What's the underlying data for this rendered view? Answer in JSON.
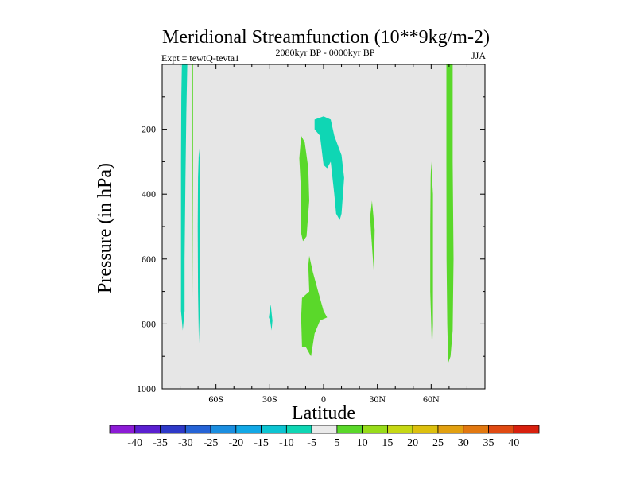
{
  "chart_data": {
    "type": "heatmap",
    "title": "Meridional Streamfunction (10**9kg/m-2)",
    "left_label": "Expt = tewtQ-tevta1",
    "center_label": "2080kyr BP - 0000kyr BP",
    "right_label": "JJA",
    "xlabel": "Latitude",
    "ylabel": "Pressure (in hPa)",
    "xlim": [
      -90,
      90
    ],
    "ylim": [
      1000,
      0
    ],
    "x_ticks": [
      {
        "value": -60,
        "label": "60S"
      },
      {
        "value": -30,
        "label": "30S"
      },
      {
        "value": 0,
        "label": "0"
      },
      {
        "value": 30,
        "label": "30N"
      },
      {
        "value": 60,
        "label": "60N"
      }
    ],
    "y_ticks": [
      {
        "value": 200,
        "label": "200"
      },
      {
        "value": 400,
        "label": "400"
      },
      {
        "value": 600,
        "label": "600"
      },
      {
        "value": 800,
        "label": "800"
      },
      {
        "value": 1000,
        "label": "1000"
      }
    ],
    "background_color": "#e6e6e6",
    "colorbar": {
      "levels": [
        "-40",
        "-35",
        "-30",
        "-25",
        "-20",
        "-15",
        "-10",
        "-5",
        "5",
        "10",
        "15",
        "20",
        "25",
        "30",
        "35",
        "40"
      ],
      "colors": [
        "#8c1bd6",
        "#5a1fd0",
        "#2e39c8",
        "#2563d6",
        "#1b8ee0",
        "#12a8e6",
        "#0dc4d2",
        "#0fd6b4",
        "#eaeaea",
        "#5ad82a",
        "#98dc1a",
        "#c6d814",
        "#ddc00e",
        "#e2a010",
        "#e27810",
        "#e04a12",
        "#d8200e"
      ]
    },
    "regions": [
      {
        "name": "sh-high-lat-neg-column",
        "value": -10,
        "color": "#0fd6b4",
        "outline": [
          [
            -79,
            0
          ],
          [
            -76,
            0
          ],
          [
            -76.5,
            150
          ],
          [
            -77,
            350
          ],
          [
            -77.5,
            600
          ],
          [
            -77.5,
            760
          ],
          [
            -78.5,
            820
          ],
          [
            -79.5,
            760
          ],
          [
            -79.5,
            600
          ],
          [
            -79.5,
            300
          ],
          [
            -79.3,
            100
          ]
        ]
      },
      {
        "name": "sh-thin-pos-strip",
        "value": 5,
        "color": "#5ad82a",
        "outline": [
          [
            -73.5,
            0
          ],
          [
            -72.8,
            0
          ],
          [
            -72.8,
            300
          ],
          [
            -73,
            600
          ],
          [
            -73.2,
            760
          ],
          [
            -73.5,
            600
          ],
          [
            -73.6,
            300
          ]
        ]
      },
      {
        "name": "sh-midlat-neg-strip",
        "value": -5,
        "color": "#0fd6b4",
        "outline": [
          [
            -69.5,
            260
          ],
          [
            -69,
            300
          ],
          [
            -68.8,
            500
          ],
          [
            -68.8,
            700
          ],
          [
            -69.5,
            860
          ],
          [
            -70,
            700
          ],
          [
            -70.2,
            500
          ],
          [
            -70,
            350
          ]
        ]
      },
      {
        "name": "sh-subtropics-small-neg",
        "value": -5,
        "color": "#0fd6b4",
        "outline": [
          [
            -29.5,
            740
          ],
          [
            -28.5,
            790
          ],
          [
            -29,
            820
          ],
          [
            -29.8,
            790
          ],
          [
            -30.5,
            780
          ]
        ]
      },
      {
        "name": "tropical-upper-pos",
        "value": 5,
        "color": "#5ad82a",
        "outline": [
          [
            -12.5,
            220
          ],
          [
            -10.5,
            240
          ],
          [
            -8.5,
            320
          ],
          [
            -8,
            420
          ],
          [
            -9.5,
            530
          ],
          [
            -11.5,
            545
          ],
          [
            -12.5,
            520
          ],
          [
            -12.5,
            400
          ],
          [
            -13.5,
            290
          ]
        ]
      },
      {
        "name": "tropical-lower-pos",
        "value": 5,
        "color": "#5ad82a",
        "outline": [
          [
            -8,
            590
          ],
          [
            -6,
            640
          ],
          [
            -3,
            700
          ],
          [
            0,
            760
          ],
          [
            2,
            780
          ],
          [
            -2,
            790
          ],
          [
            -5,
            830
          ],
          [
            -7,
            900
          ],
          [
            -10,
            870
          ],
          [
            -12,
            870
          ],
          [
            -12.5,
            780
          ],
          [
            -12,
            720
          ],
          [
            -8,
            700
          ],
          [
            -8.5,
            620
          ]
        ]
      },
      {
        "name": "equatorial-upper-neg",
        "value": -5,
        "color": "#0fd6b4",
        "outline": [
          [
            -5,
            170
          ],
          [
            0,
            160
          ],
          [
            4,
            170
          ],
          [
            6,
            220
          ],
          [
            10,
            280
          ],
          [
            11.5,
            350
          ],
          [
            10,
            460
          ],
          [
            9,
            480
          ],
          [
            7,
            460
          ],
          [
            6,
            400
          ],
          [
            4,
            300
          ],
          [
            2,
            320
          ],
          [
            0,
            310
          ],
          [
            -2,
            220
          ],
          [
            -5,
            200
          ]
        ]
      },
      {
        "name": "nh-subtropics-pos",
        "value": 5,
        "color": "#5ad82a",
        "outline": [
          [
            27,
            420
          ],
          [
            28.5,
            510
          ],
          [
            28,
            640
          ],
          [
            26.5,
            520
          ],
          [
            26,
            470
          ]
        ]
      },
      {
        "name": "nh-midlat-pos-strip",
        "value": 5,
        "color": "#5ad82a",
        "outline": [
          [
            60,
            300
          ],
          [
            61,
            400
          ],
          [
            61,
            600
          ],
          [
            61,
            800
          ],
          [
            60.5,
            890
          ],
          [
            59.5,
            700
          ],
          [
            59.5,
            500
          ],
          [
            59.7,
            350
          ]
        ]
      },
      {
        "name": "nh-high-lat-pos-column",
        "value": 5,
        "color": "#5ad82a",
        "outline": [
          [
            68.5,
            0
          ],
          [
            72,
            0
          ],
          [
            72,
            300
          ],
          [
            72.5,
            600
          ],
          [
            72,
            820
          ],
          [
            70.8,
            900
          ],
          [
            69.5,
            920
          ],
          [
            69,
            800
          ],
          [
            68.6,
            600
          ],
          [
            68.5,
            300
          ]
        ]
      }
    ]
  }
}
